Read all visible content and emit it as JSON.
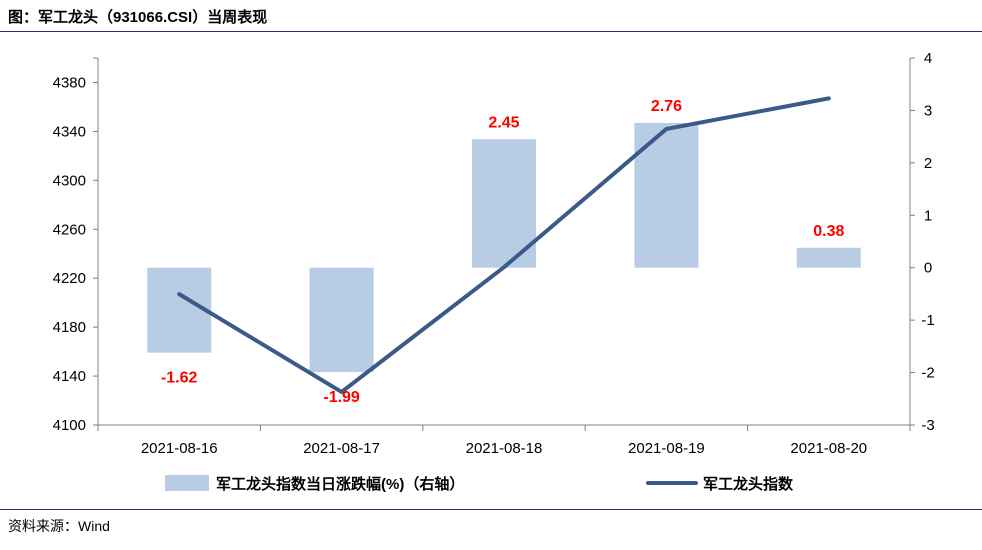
{
  "header": {
    "title": "图：军工龙头（931066.CSI）当周表现"
  },
  "footer": {
    "source": "资料来源：Wind"
  },
  "chart_data": {
    "type": "bar+line",
    "categories": [
      "2021-08-16",
      "2021-08-17",
      "2021-08-18",
      "2021-08-19",
      "2021-08-20"
    ],
    "series": [
      {
        "name": "军工龙头指数当日涨跌幅(%)（右轴）",
        "type": "bar",
        "axis": "right",
        "values": [
          -1.62,
          -1.99,
          2.45,
          2.76,
          0.38
        ],
        "color": "#b8cce4"
      },
      {
        "name": "军工龙头指数",
        "type": "line",
        "axis": "left",
        "values": [
          4207,
          4127,
          4229,
          4342,
          4367
        ],
        "color": "#3a5a8a"
      }
    ],
    "data_labels": [
      "-1.62",
      "-1.99",
      "2.45",
      "2.76",
      "0.38"
    ],
    "y_left": {
      "min": 4100,
      "max": 4400,
      "ticks": [
        "4100",
        "4140",
        "4180",
        "4220",
        "4260",
        "4300",
        "4340",
        "4380"
      ]
    },
    "y_right": {
      "min": -3,
      "max": 4,
      "ticks": [
        "-3",
        "-2",
        "-1",
        "0",
        "1",
        "2",
        "3",
        "4"
      ]
    },
    "label_color": "#ff0000",
    "grid": false,
    "legend_position": "bottom"
  }
}
